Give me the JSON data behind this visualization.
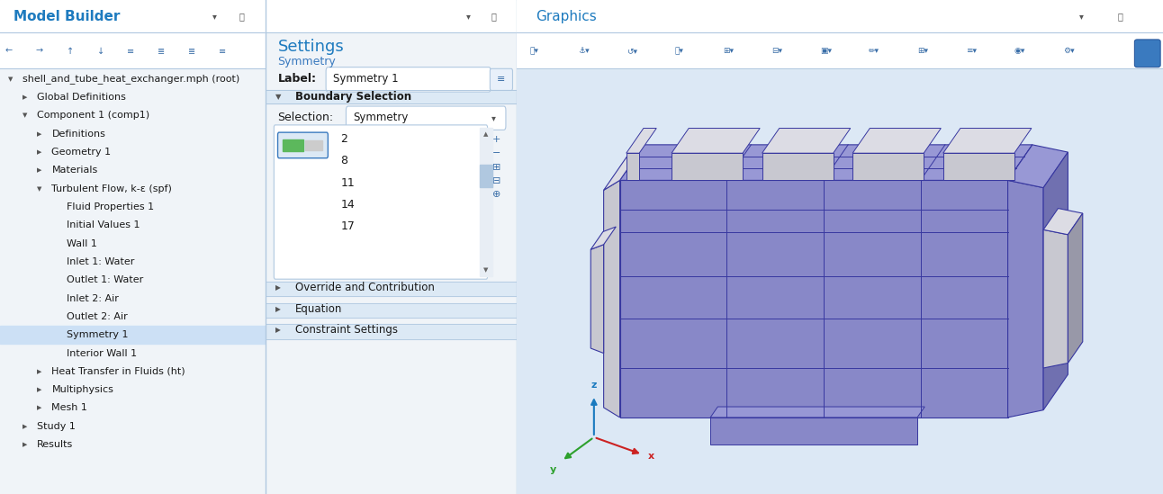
{
  "fig_width": 12.92,
  "fig_height": 5.49,
  "bg_color": "#f0f4f8",
  "panel_bg": "#ffffff",
  "header_blue": "#1e7bbf",
  "light_blue_bg": "#dce9f5",
  "selected_row_bg": "#cce0f5",
  "section_header_bg": "#dce9f5",
  "border_color": "#b0c8e0",
  "text_color": "#1a1a1a",
  "subtext_color": "#3a7abf",
  "model_builder_title": "Model Builder",
  "settings_title": "Settings",
  "settings_subtitle": "Symmetry",
  "graphics_title": "Graphics",
  "tree_items": [
    {
      "text": "shell_and_tube_heat_exchanger.mph (root)",
      "indent": 1,
      "has_arrow": true,
      "arrow_open": true
    },
    {
      "text": "Global Definitions",
      "indent": 2,
      "has_arrow": true,
      "arrow_open": false
    },
    {
      "text": "Component 1 (comp1)",
      "indent": 2,
      "has_arrow": true,
      "arrow_open": true
    },
    {
      "text": "Definitions",
      "indent": 3,
      "has_arrow": true,
      "arrow_open": false
    },
    {
      "text": "Geometry 1",
      "indent": 3,
      "has_arrow": true,
      "arrow_open": false
    },
    {
      "text": "Materials",
      "indent": 3,
      "has_arrow": true,
      "arrow_open": false
    },
    {
      "text": "Turbulent Flow, k-ε (spf)",
      "indent": 3,
      "has_arrow": true,
      "arrow_open": true
    },
    {
      "text": "Fluid Properties 1",
      "indent": 4,
      "has_arrow": false
    },
    {
      "text": "Initial Values 1",
      "indent": 4,
      "has_arrow": false
    },
    {
      "text": "Wall 1",
      "indent": 4,
      "has_arrow": false
    },
    {
      "text": "Inlet 1: Water",
      "indent": 4,
      "has_arrow": false
    },
    {
      "text": "Outlet 1: Water",
      "indent": 4,
      "has_arrow": false
    },
    {
      "text": "Inlet 2: Air",
      "indent": 4,
      "has_arrow": false
    },
    {
      "text": "Outlet 2: Air",
      "indent": 4,
      "has_arrow": false
    },
    {
      "text": "Symmetry 1",
      "indent": 4,
      "has_arrow": false,
      "selected": true
    },
    {
      "text": "Interior Wall 1",
      "indent": 4,
      "has_arrow": false
    },
    {
      "text": "Heat Transfer in Fluids (ht)",
      "indent": 3,
      "has_arrow": true,
      "arrow_open": false
    },
    {
      "text": "Multiphysics",
      "indent": 3,
      "has_arrow": true,
      "arrow_open": false
    },
    {
      "text": "Mesh 1",
      "indent": 3,
      "has_arrow": true,
      "arrow_open": false
    },
    {
      "text": "Study 1",
      "indent": 2,
      "has_arrow": true,
      "arrow_open": false
    },
    {
      "text": "Results",
      "indent": 2,
      "has_arrow": true,
      "arrow_open": false
    }
  ],
  "settings_label": "Label:",
  "settings_label_value": "Symmetry 1",
  "boundary_selection_header": "Boundary Selection",
  "selection_label": "Selection:",
  "selection_value": "Symmetry",
  "boundary_numbers": [
    "2",
    "8",
    "11",
    "14",
    "17"
  ],
  "collapsible_sections": [
    "Override and Contribution",
    "Equation",
    "Constraint Settings"
  ],
  "model_color": "#8888c8",
  "model_color_top": "#9898d5",
  "model_color_side": "#7070b0",
  "model_color_dark": "#6060a0",
  "gray1": "#c8c8d0",
  "gray2": "#dcdce4",
  "edge_color": "#3838a0"
}
